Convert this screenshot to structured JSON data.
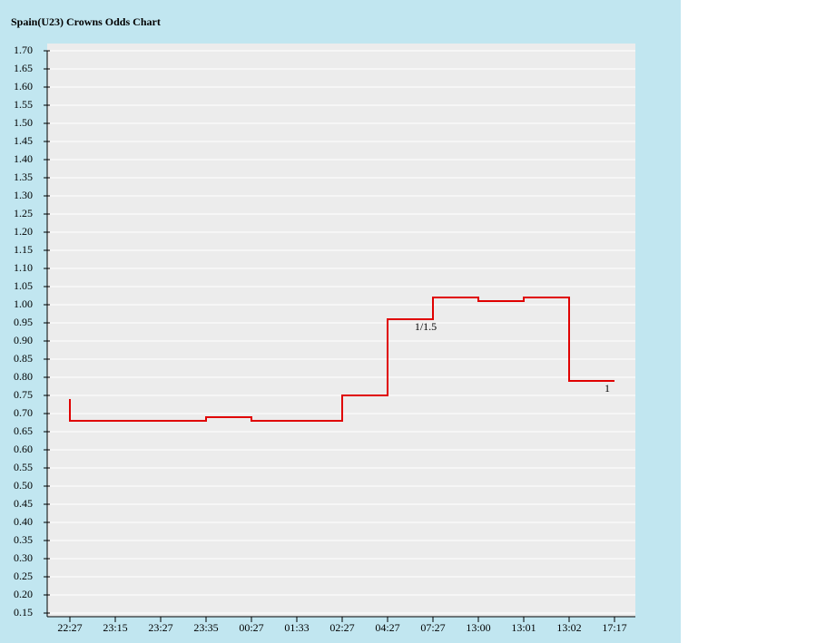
{
  "chart_data": {
    "type": "step-line",
    "title": "Spain(U23) Crowns Odds Chart",
    "categories": [
      "22:27",
      "23:15",
      "23:27",
      "23:35",
      "00:27",
      "01:33",
      "02:27",
      "04:27",
      "07:27",
      "13:00",
      "13:01",
      "13:02",
      "17:17"
    ],
    "series": [
      {
        "color": "#e00000",
        "values": [
          0.74,
          0.68,
          0.68,
          0.68,
          0.69,
          0.68,
          0.68,
          0.75,
          0.96,
          1.02,
          1.01,
          1.02,
          0.79
        ]
      }
    ],
    "annotations": [
      {
        "category": 8,
        "value": 0.96,
        "text": "1/1.5"
      },
      {
        "category": 12,
        "value": 0.79,
        "text": "1"
      }
    ],
    "ylim": [
      0.15,
      1.7
    ],
    "yticks": [
      {
        "value": 0.15,
        "label": "0.15"
      },
      {
        "value": 0.2,
        "label": "0.20"
      },
      {
        "value": 0.25,
        "label": "0.25"
      },
      {
        "value": 0.3,
        "label": "0.30"
      },
      {
        "value": 0.35,
        "label": "0.35"
      },
      {
        "value": 0.4,
        "label": "0.40"
      },
      {
        "value": 0.45,
        "label": "0.45"
      },
      {
        "value": 0.5,
        "label": "0.50"
      },
      {
        "value": 0.55,
        "label": "0.55"
      },
      {
        "value": 0.6,
        "label": "0.60"
      },
      {
        "value": 0.65,
        "label": "0.65"
      },
      {
        "value": 0.7,
        "label": "0.70"
      },
      {
        "value": 0.75,
        "label": "0.75"
      },
      {
        "value": 0.8,
        "label": "0.80"
      },
      {
        "value": 0.85,
        "label": "0.85"
      },
      {
        "value": 0.9,
        "label": "0.90"
      },
      {
        "value": 0.95,
        "label": "0.95"
      },
      {
        "value": 1.0,
        "label": "1.00"
      },
      {
        "value": 1.05,
        "label": "1.05"
      },
      {
        "value": 1.1,
        "label": "1.10"
      },
      {
        "value": 1.15,
        "label": "1.15"
      },
      {
        "value": 1.2,
        "label": "1.20"
      },
      {
        "value": 1.25,
        "label": "1.25"
      },
      {
        "value": 1.3,
        "label": "1.30"
      },
      {
        "value": 1.35,
        "label": "1.35"
      },
      {
        "value": 1.4,
        "label": "1.40"
      },
      {
        "value": 1.45,
        "label": "1.45"
      },
      {
        "value": 1.5,
        "label": "1.50"
      },
      {
        "value": 1.55,
        "label": "1.55"
      },
      {
        "value": 1.6,
        "label": "1.60"
      },
      {
        "value": 1.65,
        "label": "1.65"
      },
      {
        "value": 1.7,
        "label": "1.70"
      }
    ],
    "grid": true
  }
}
